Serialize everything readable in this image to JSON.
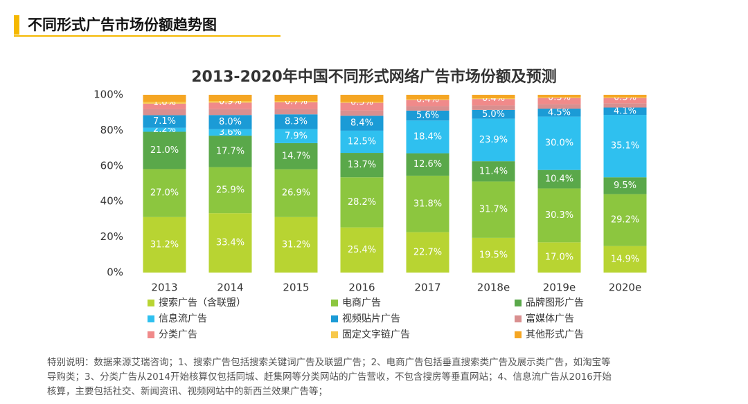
{
  "header": {
    "title": "不同形式广告市场份额趋势图"
  },
  "chart_data": {
    "type": "stacked_bar",
    "title": "2013-2020年中国不同形式网络广告市场份额及预测",
    "categories": [
      "2013",
      "2014",
      "2015",
      "2016",
      "2017",
      "2018e",
      "2019e",
      "2020e"
    ],
    "ylim": [
      0,
      100
    ],
    "yticks": [
      {
        "value": 0,
        "label": "0%"
      },
      {
        "value": 20,
        "label": "20%"
      },
      {
        "value": 40,
        "label": "40%"
      },
      {
        "value": 60,
        "label": "60%"
      },
      {
        "value": 80,
        "label": "80%"
      },
      {
        "value": 100,
        "label": "100%"
      }
    ],
    "legend": "bottom",
    "series": [
      {
        "name": "搜索广告（含联盟）",
        "color": "#b8d432",
        "values": [
          31.2,
          33.4,
          31.2,
          25.4,
          22.7,
          19.5,
          17.0,
          14.9
        ],
        "value_labels": [
          "31.2%",
          "33.4%",
          "31.2%",
          "25.4%",
          "22.7%",
          "19.5%",
          "17.0%",
          "14.9%"
        ]
      },
      {
        "name": "电商广告",
        "color": "#8cc63f",
        "values": [
          27.0,
          25.9,
          26.9,
          28.2,
          31.8,
          31.7,
          30.3,
          29.2
        ],
        "value_labels": [
          "27.0%",
          "25.9%",
          "26.9%",
          "28.2%",
          "31.8%",
          "31.7%",
          "30.3%",
          "29.2%"
        ]
      },
      {
        "name": "品牌图形广告",
        "color": "#5aa84a",
        "values": [
          21.0,
          17.7,
          14.7,
          13.7,
          12.6,
          11.4,
          10.4,
          9.5
        ],
        "value_labels": [
          "21.0%",
          "17.7%",
          "14.7%",
          "13.7%",
          "12.6%",
          "11.4%",
          "10.4%",
          "9.5%"
        ]
      },
      {
        "name": "信息流广告",
        "color": "#2fc0ef",
        "values": [
          2.2,
          3.6,
          7.9,
          12.5,
          18.4,
          23.9,
          30.0,
          35.1
        ],
        "value_labels": [
          "2.2%",
          "3.6%",
          "7.9%",
          "12.5%",
          "18.4%",
          "23.9%",
          "30.0%",
          "35.1%"
        ]
      },
      {
        "name": "视频贴片广告",
        "color": "#1b9bd6",
        "values": [
          7.1,
          8.0,
          8.3,
          8.4,
          5.6,
          5.0,
          4.5,
          4.1
        ],
        "value_labels": [
          "7.1%",
          "8.0%",
          "8.3%",
          "8.4%",
          "5.6%",
          "5.0%",
          "4.5%",
          "4.1%"
        ]
      },
      {
        "name": "富媒体广告",
        "color": "#d98f8f",
        "values": [
          3.5,
          3.5,
          3.0,
          3.0,
          2.5,
          2.5,
          2.5,
          2.4
        ]
      },
      {
        "name": "分类广告",
        "color": "#f08a8a",
        "values": [
          3.0,
          3.5,
          3.8,
          4.3,
          3.5,
          3.6,
          3.5,
          3.0
        ]
      },
      {
        "name": "固定文字链广告",
        "color": "#f7c84a",
        "values": [
          1.0,
          0.9,
          0.7,
          0.5,
          0.4,
          0.4,
          0.3,
          0.3
        ],
        "value_labels": [
          "1.0%",
          "0.9%",
          "0.7%",
          "0.5%",
          "0.4%",
          "0.4%",
          "0.3%",
          "0.3%"
        ]
      },
      {
        "name": "其他形式广告",
        "color": "#f5a623",
        "values": [
          4.0,
          3.5,
          3.5,
          4.0,
          2.5,
          2.0,
          1.5,
          1.5
        ]
      }
    ]
  },
  "note": {
    "lines": [
      "特别说明：数据来源艾瑞咨询；1、搜索广告包括搜索关键词广告及联盟广告；2、电商广告包括垂直搜索类广告及展示类广告，如淘宝等",
      "导购类；3、分类广告从2014开始核算仅包括同城、赶集网等分类网站的广告营收，不包含搜房等垂直网站；4、信息流广告从2016开始",
      "核算，主要包括社交、新闻资讯、视频网站中的新西兰效果广告等；"
    ]
  }
}
